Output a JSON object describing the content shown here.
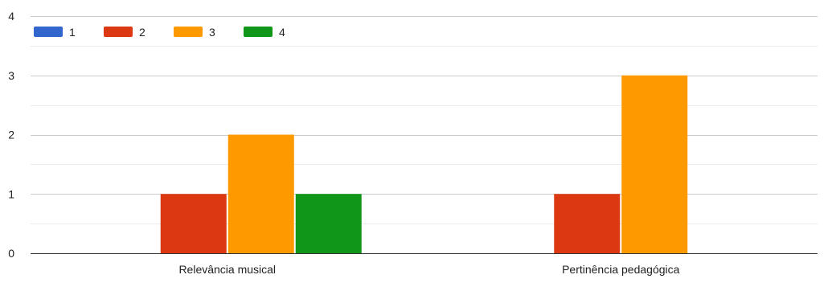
{
  "chart_data": {
    "type": "bar",
    "categories": [
      "Relevância musical",
      "Pertinência pedagógica"
    ],
    "series": [
      {
        "name": "1",
        "values": [
          0,
          0
        ],
        "color": "#3366cc"
      },
      {
        "name": "2",
        "values": [
          1,
          1
        ],
        "color": "#dc3912"
      },
      {
        "name": "3",
        "values": [
          2,
          3
        ],
        "color": "#ff9900"
      },
      {
        "name": "4",
        "values": [
          1,
          0
        ],
        "color": "#109618"
      }
    ],
    "ylim": [
      0,
      4
    ],
    "yticks": [
      "0",
      "1",
      "2",
      "3",
      "4"
    ],
    "legend_position": "top-left",
    "grid": true
  }
}
